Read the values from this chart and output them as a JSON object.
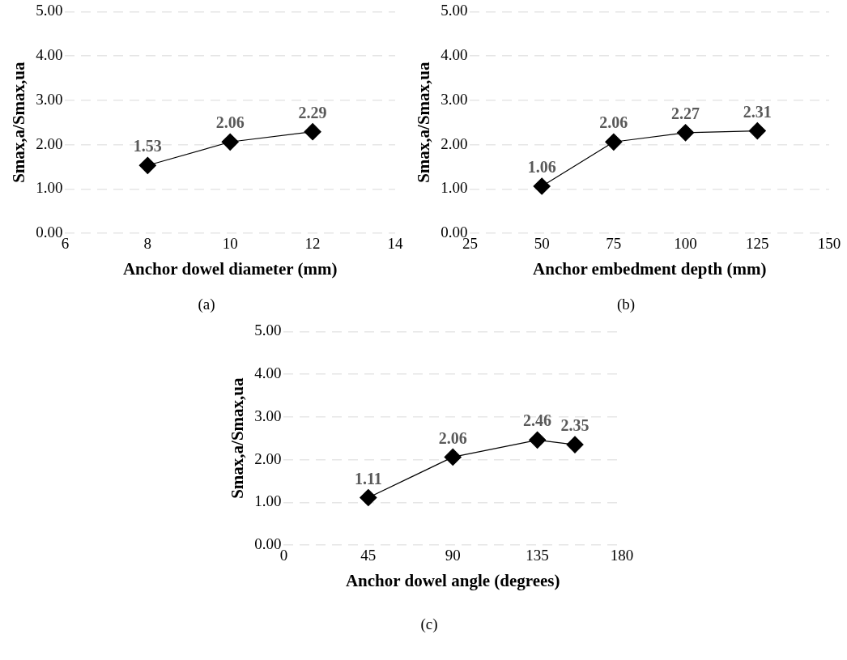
{
  "chart_data": [
    {
      "type": "line",
      "xlabel": "Anchor dowel diameter (mm)",
      "ylabel": "Smax,a/Smax,ua",
      "x": [
        8,
        10,
        12
      ],
      "series": [
        {
          "color": "#000000",
          "values": [
            1.53,
            2.06,
            2.29
          ]
        }
      ],
      "xlim": [
        6,
        14
      ],
      "xticks": [
        6,
        8,
        10,
        12,
        14
      ],
      "ylim": [
        0,
        5
      ],
      "yticks": [
        {
          "value": 0,
          "label": "0.00"
        },
        {
          "value": 1,
          "label": "1.00"
        },
        {
          "value": 2,
          "label": "2.00"
        },
        {
          "value": 3,
          "label": "3.00"
        },
        {
          "value": 4,
          "label": "4.00"
        },
        {
          "value": 5,
          "label": "5.00"
        }
      ],
      "grid": "y",
      "marker": "diamond",
      "line_style": "solid",
      "data_labels": true,
      "legend": false,
      "annotations": [
        "(a)"
      ]
    },
    {
      "type": "line",
      "xlabel": "Anchor embedment depth (mm)",
      "ylabel": "Smax,a/Smax,ua",
      "x": [
        50,
        75,
        100,
        125
      ],
      "series": [
        {
          "color": "#000000",
          "values": [
            1.06,
            2.06,
            2.27,
            2.31
          ]
        }
      ],
      "xlim": [
        25,
        150
      ],
      "xticks": [
        25,
        50,
        75,
        100,
        125,
        150
      ],
      "ylim": [
        0,
        5
      ],
      "yticks": [
        {
          "value": 0,
          "label": "0.00"
        },
        {
          "value": 1,
          "label": "1.00"
        },
        {
          "value": 2,
          "label": "2.00"
        },
        {
          "value": 3,
          "label": "3.00"
        },
        {
          "value": 4,
          "label": "4.00"
        },
        {
          "value": 5,
          "label": "5.00"
        }
      ],
      "grid": "y",
      "marker": "diamond",
      "line_style": "solid",
      "data_labels": true,
      "legend": false,
      "annotations": [
        "(b)"
      ]
    },
    {
      "type": "line",
      "xlabel": "Anchor dowel angle (degrees)",
      "ylabel": "Smax,a/Smax,ua",
      "x": [
        45,
        90,
        135,
        155
      ],
      "series": [
        {
          "color": "#000000",
          "values": [
            1.11,
            2.06,
            2.46,
            2.35
          ]
        }
      ],
      "xlim": [
        0,
        180
      ],
      "xticks": [
        0,
        45,
        90,
        135,
        180
      ],
      "ylim": [
        0,
        5
      ],
      "yticks": [
        {
          "value": 0,
          "label": "0.00"
        },
        {
          "value": 1,
          "label": "1.00"
        },
        {
          "value": 2,
          "label": "2.00"
        },
        {
          "value": 3,
          "label": "3.00"
        },
        {
          "value": 4,
          "label": "4.00"
        },
        {
          "value": 5,
          "label": "5.00"
        }
      ],
      "grid": "y",
      "marker": "diamond",
      "line_style": "solid",
      "data_labels": true,
      "legend": false,
      "annotations": [
        "(c)"
      ]
    }
  ]
}
